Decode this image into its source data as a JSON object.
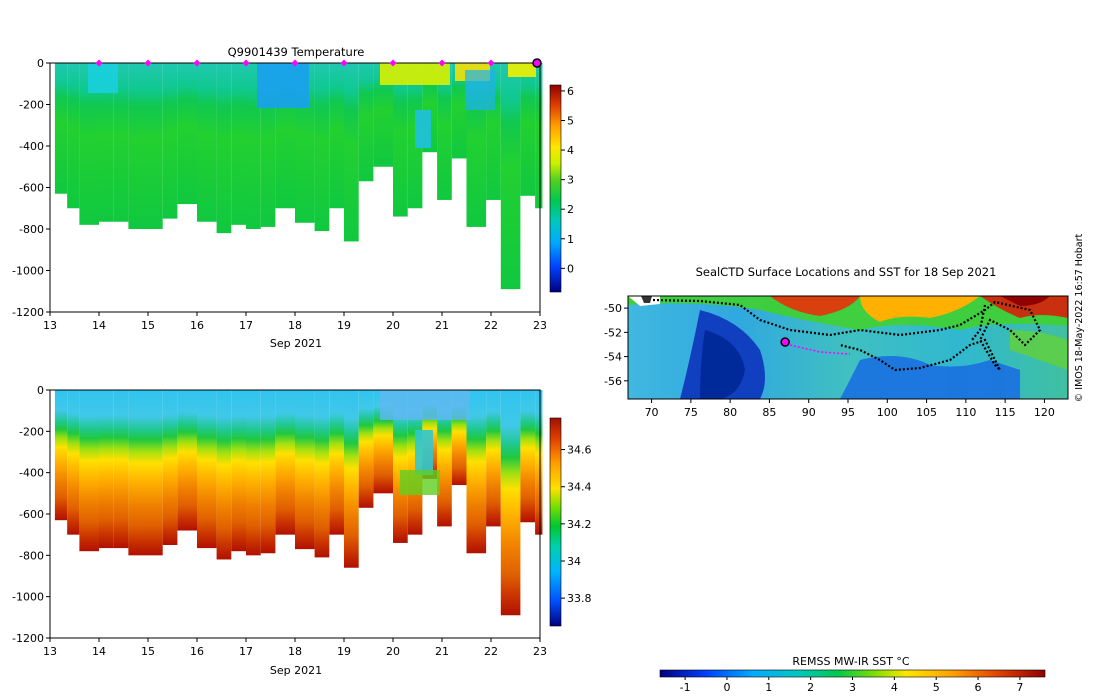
{
  "chart_data": [
    {
      "type": "heatmap",
      "title": "Q9901439  Temperature",
      "xlabel": "Sep 2021",
      "ylabel": "",
      "x_ticks": [
        "13",
        "14",
        "15",
        "16",
        "17",
        "18",
        "19",
        "20",
        "21",
        "22",
        "23"
      ],
      "x_range": [
        13,
        23
      ],
      "y_ticks": [
        "0",
        "-200",
        "-400",
        "-600",
        "-800",
        "-1000",
        "-1200"
      ],
      "y_range": [
        -1200,
        0
      ],
      "colorbar": {
        "ticks": [
          "6",
          "5",
          "4",
          "3",
          "2",
          "1",
          "0"
        ],
        "range": [
          -0.8,
          6.2
        ]
      },
      "surface_markers_days": [
        14,
        15,
        16,
        17,
        18,
        19,
        20,
        21,
        22,
        23
      ],
      "profiles": [
        {
          "day": 13.1,
          "depth": 630
        },
        {
          "day": 13.35,
          "depth": 700
        },
        {
          "day": 13.6,
          "depth": 780
        },
        {
          "day": 14.0,
          "depth": 765
        },
        {
          "day": 14.3,
          "depth": 765
        },
        {
          "day": 14.6,
          "depth": 800
        },
        {
          "day": 15.0,
          "depth": 800
        },
        {
          "day": 15.3,
          "depth": 750
        },
        {
          "day": 15.6,
          "depth": 680
        },
        {
          "day": 16.0,
          "depth": 765
        },
        {
          "day": 16.4,
          "depth": 820
        },
        {
          "day": 16.7,
          "depth": 780
        },
        {
          "day": 17.0,
          "depth": 800
        },
        {
          "day": 17.3,
          "depth": 790
        },
        {
          "day": 17.6,
          "depth": 700
        },
        {
          "day": 18.0,
          "depth": 770
        },
        {
          "day": 18.4,
          "depth": 810
        },
        {
          "day": 18.7,
          "depth": 700
        },
        {
          "day": 19.0,
          "depth": 860
        },
        {
          "day": 19.3,
          "depth": 570
        },
        {
          "day": 19.6,
          "depth": 500
        },
        {
          "day": 20.0,
          "depth": 740
        },
        {
          "day": 20.3,
          "depth": 700
        },
        {
          "day": 20.6,
          "depth": 430
        },
        {
          "day": 20.9,
          "depth": 660
        },
        {
          "day": 21.2,
          "depth": 460
        },
        {
          "day": 21.5,
          "depth": 790
        },
        {
          "day": 21.9,
          "depth": 660
        },
        {
          "day": 22.2,
          "depth": 1090
        },
        {
          "day": 22.6,
          "depth": 640
        },
        {
          "day": 22.9,
          "depth": 700
        }
      ]
    },
    {
      "type": "heatmap",
      "title": "",
      "xlabel": "Sep 2021",
      "ylabel": "",
      "x_ticks": [
        "13",
        "14",
        "15",
        "16",
        "17",
        "18",
        "19",
        "20",
        "21",
        "22",
        "23"
      ],
      "x_range": [
        13,
        23
      ],
      "y_ticks": [
        "0",
        "-200",
        "-400",
        "-600",
        "-800",
        "-1000",
        "-1200"
      ],
      "y_range": [
        -1200,
        0
      ],
      "colorbar": {
        "ticks": [
          "34.6",
          "34.4",
          "34.2",
          "34",
          "33.8"
        ],
        "range": [
          33.65,
          34.77
        ]
      }
    },
    {
      "type": "heatmap",
      "title": "SealCTD Surface Locations and SST for 18 Sep 2021",
      "xlabel": "",
      "ylabel": "",
      "x_ticks": [
        "70",
        "75",
        "80",
        "85",
        "90",
        "95",
        "100",
        "105",
        "110",
        "115",
        "120"
      ],
      "x_range": [
        67,
        123
      ],
      "y_ticks": [
        "-50",
        "-52",
        "-54",
        "-56"
      ],
      "y_range": [
        -57.5,
        -49
      ],
      "latest_position": {
        "lon": 87,
        "lat": -52.8
      },
      "colorbar": {
        "label": "REMSS MW-IR SST °C",
        "ticks": [
          "-1",
          "0",
          "1",
          "2",
          "3",
          "4",
          "5",
          "6",
          "7"
        ],
        "range": [
          -1.6,
          7.6
        ]
      }
    }
  ],
  "credit": "© IMOS 18-May-2022 16:57 Hobart",
  "colors": {
    "marker": "#ff00ff",
    "track": "#000000"
  }
}
